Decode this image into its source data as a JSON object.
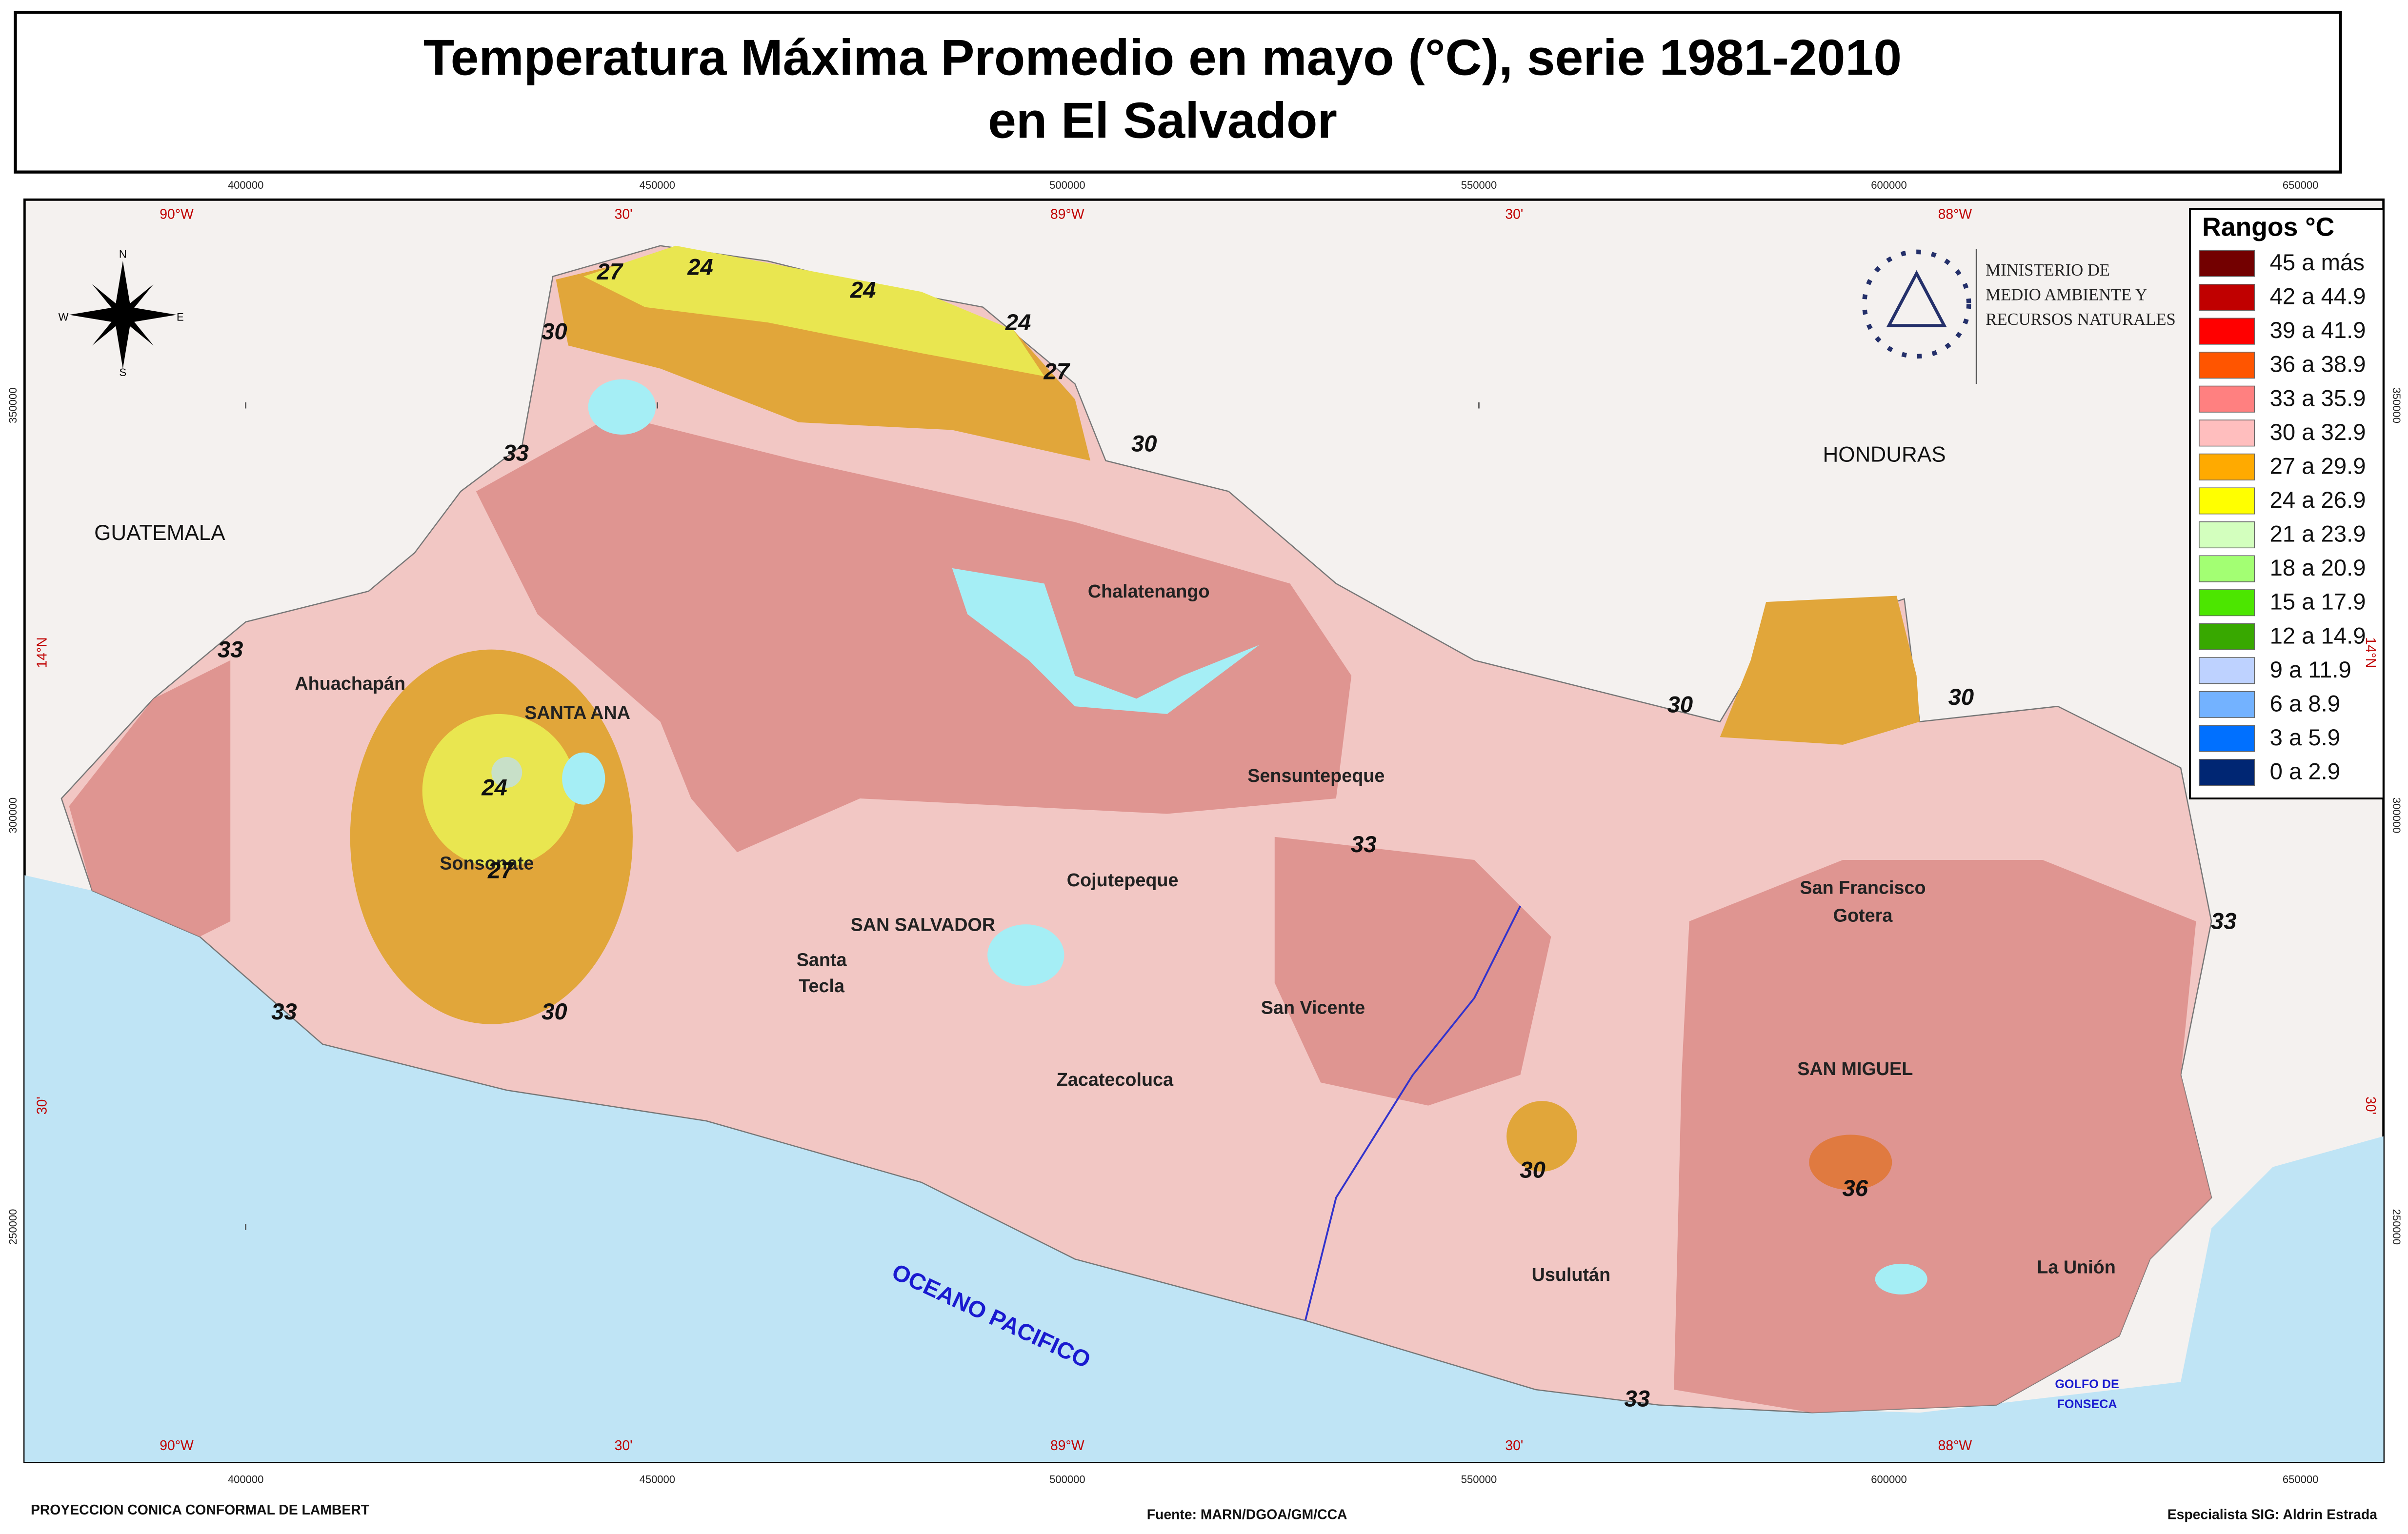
{
  "title": {
    "line1": "Temperatura Máxima Promedio en mayo (°C), serie 1981-2010",
    "line2": "en El Salvador"
  },
  "legend": {
    "title": "Rangos °C",
    "items": [
      {
        "label": "45 a más",
        "color": "#730000"
      },
      {
        "label": "42 a 44.9",
        "color": "#c00000"
      },
      {
        "label": "39 a 41.9",
        "color": "#ff0000"
      },
      {
        "label": "36 a 38.9",
        "color": "#ff5500"
      },
      {
        "label": "33 a 35.9",
        "color": "#ff8080"
      },
      {
        "label": "30 a 32.9",
        "color": "#ffbebe"
      },
      {
        "label": "27 a 29.9",
        "color": "#ffaa00"
      },
      {
        "label": "24 a 26.9",
        "color": "#ffff00"
      },
      {
        "label": "21 a 23.9",
        "color": "#d3ffbe"
      },
      {
        "label": "18 a 20.9",
        "color": "#a3ff73"
      },
      {
        "label": "15 a 17.9",
        "color": "#4ce600"
      },
      {
        "label": "12 a 14.9",
        "color": "#38a800"
      },
      {
        "label": "9 a 11.9",
        "color": "#bed2ff"
      },
      {
        "label": "6 a 8.9",
        "color": "#73b2ff"
      },
      {
        "label": "3 a 5.9",
        "color": "#0070ff"
      },
      {
        "label": "0 a 2.9",
        "color": "#002673"
      }
    ]
  },
  "ministry": [
    "MINISTERIO DE",
    "MEDIO AMBIENTE Y",
    "RECURSOS NATURALES"
  ],
  "compass": {
    "n": "N",
    "s": "S",
    "e": "E",
    "w": "W"
  },
  "grid": {
    "eastings": [
      "400000",
      "450000",
      "500000",
      "550000",
      "600000",
      "650000"
    ],
    "longitudes": [
      "90°W",
      "30'",
      "89°W",
      "30'",
      "88°W"
    ],
    "northings": [
      "350000",
      "300000",
      "250000"
    ],
    "latitudes": [
      "14°N",
      "30'"
    ]
  },
  "countries": [
    "GUATEMALA",
    "HONDURAS"
  ],
  "places": [
    "Chalatenango",
    "Ahuachapán",
    "SANTA ANA",
    "Sensuntepeque",
    "Sonsonate",
    "Cojutepeque",
    "SAN SALVADOR",
    "Santa",
    "Tecla",
    "San Francisco",
    "Gotera",
    "San Vicente",
    "SAN MIGUEL",
    "Zacatecoluca",
    "Usulután",
    "La Unión"
  ],
  "ocean": "OCEANO PACIFICO",
  "gulf": [
    "GOLFO DE",
    "FONSECA"
  ],
  "isolines": [
    27,
    24,
    24,
    24,
    27,
    30,
    33,
    30,
    33,
    30,
    30,
    24,
    27,
    30,
    33,
    33,
    33,
    30,
    36,
    33
  ],
  "footer": {
    "projection": "PROYECCION CONICA CONFORMAL DE LAMBERT",
    "source": "Fuente: MARN/DGOA/GM/CCA",
    "author": "Especialista SIG: Aldrin Estrada"
  }
}
